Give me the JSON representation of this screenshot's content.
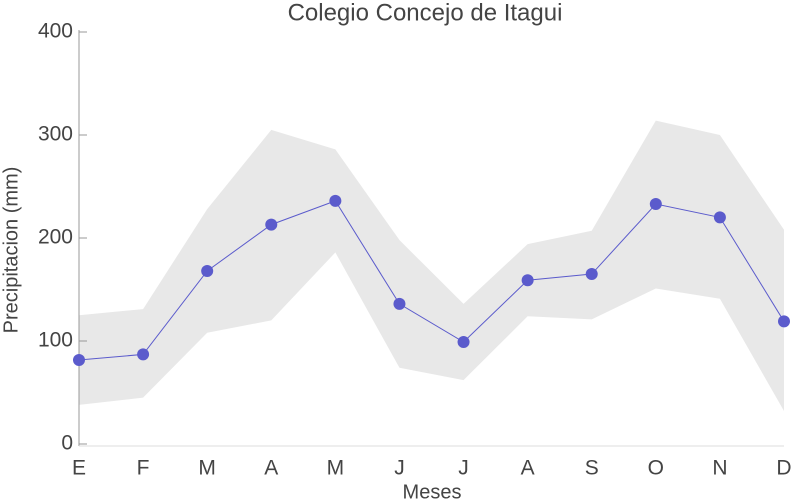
{
  "chart_data": {
    "type": "line",
    "title": "Colegio Concejo de Itagui",
    "xlabel": "Meses",
    "ylabel": "Precipitacion (mm)",
    "categories": [
      "E",
      "F",
      "M",
      "A",
      "M",
      "J",
      "J",
      "A",
      "S",
      "O",
      "N",
      "D"
    ],
    "series": [
      {
        "color": "#5b5bcc",
        "values": [
          81.5,
          87,
          168,
          213,
          236,
          136,
          99,
          159,
          165,
          233,
          220,
          119
        ]
      }
    ],
    "band": {
      "color": "#e8e8e8",
      "upper": [
        125,
        131,
        228,
        305,
        286,
        198,
        136,
        194,
        207,
        314,
        300,
        208
      ],
      "lower": [
        38,
        45,
        108,
        120,
        186,
        74,
        62,
        124,
        121,
        151,
        141,
        32
      ]
    },
    "ylim": [
      0,
      400
    ],
    "yticks": [
      0,
      100,
      200,
      300,
      400
    ]
  }
}
